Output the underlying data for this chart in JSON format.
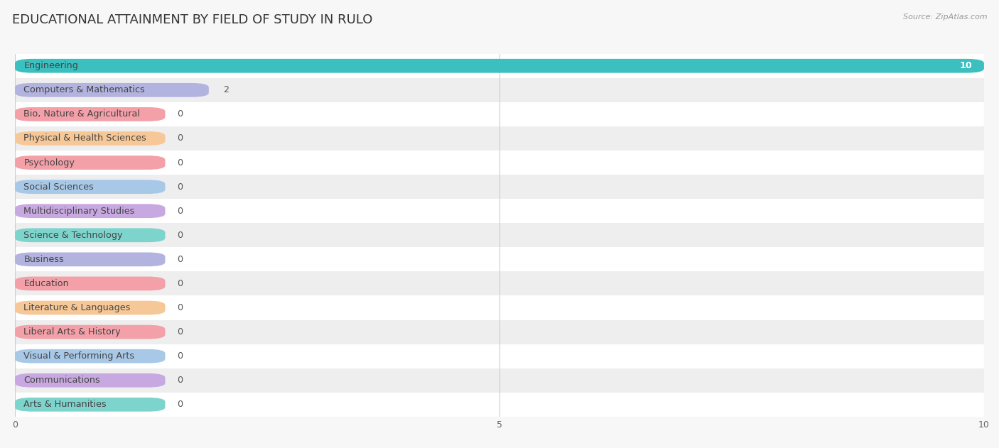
{
  "title": "EDUCATIONAL ATTAINMENT BY FIELD OF STUDY IN RULO",
  "source": "Source: ZipAtlas.com",
  "categories": [
    "Engineering",
    "Computers & Mathematics",
    "Bio, Nature & Agricultural",
    "Physical & Health Sciences",
    "Psychology",
    "Social Sciences",
    "Multidisciplinary Studies",
    "Science & Technology",
    "Business",
    "Education",
    "Literature & Languages",
    "Liberal Arts & History",
    "Visual & Performing Arts",
    "Communications",
    "Arts & Humanities"
  ],
  "values": [
    10,
    2,
    0,
    0,
    0,
    0,
    0,
    0,
    0,
    0,
    0,
    0,
    0,
    0,
    0
  ],
  "bar_colors": [
    "#3bbfbf",
    "#b3b3e0",
    "#f4a0a8",
    "#f7c897",
    "#f4a0a8",
    "#a8c8e8",
    "#c8a8e0",
    "#7dd4cc",
    "#b3b3e0",
    "#f4a0a8",
    "#f7c897",
    "#f4a0a8",
    "#a8c8e8",
    "#c8a8e0",
    "#7dd4cc"
  ],
  "bg_color": "#f7f7f7",
  "xlim": [
    0,
    10
  ],
  "xticks": [
    0,
    5,
    10
  ],
  "title_fontsize": 13,
  "label_fontsize": 9.2,
  "value_fontsize": 9.2,
  "stub_val": 1.55,
  "bar_height": 0.58
}
